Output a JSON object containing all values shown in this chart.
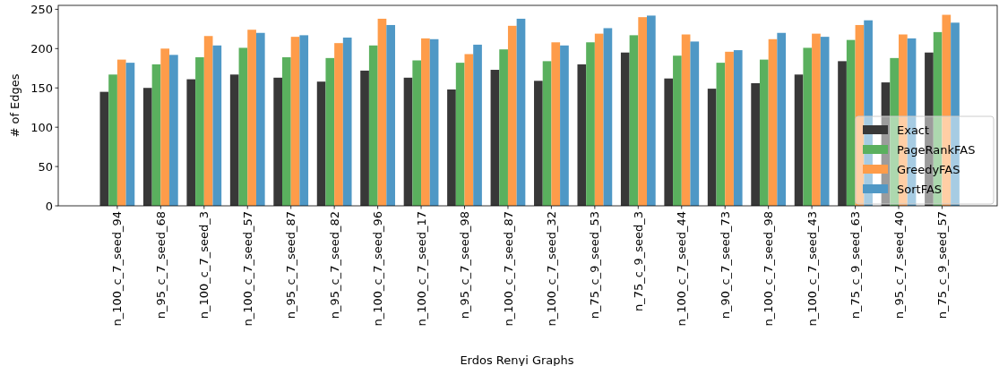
{
  "chart_data": {
    "type": "bar",
    "xlabel": "Erdos Renyi Graphs",
    "ylabel": "# of Edges",
    "categories": [
      "n_100_c_7_seed_94",
      "n_95_c_7_seed_68",
      "n_100_c_7_seed_3",
      "n_100_c_7_seed_57",
      "n_95_c_7_seed_87",
      "n_95_c_7_seed_82",
      "n_100_c_7_seed_96",
      "n_100_c_7_seed_17",
      "n_95_c_7_seed_98",
      "n_100_c_7_seed_87",
      "n_100_c_7_seed_32",
      "n_75_c_9_seed_53",
      "n_75_c_9_seed_3",
      "n_100_c_7_seed_44",
      "n_90_c_7_seed_73",
      "n_100_c_7_seed_98",
      "n_100_c_7_seed_43",
      "n_75_c_9_seed_63",
      "n_95_c_7_seed_40",
      "n_75_c_9_seed_57"
    ],
    "series": [
      {
        "name": "Exact",
        "color": "#383838",
        "values": [
          145,
          150,
          161,
          167,
          163,
          158,
          172,
          163,
          148,
          173,
          159,
          180,
          195,
          162,
          149,
          156,
          167,
          184,
          157,
          195
        ]
      },
      {
        "name": "PageRankFAS",
        "color": "#5ab05e",
        "values": [
          167,
          180,
          189,
          201,
          189,
          188,
          204,
          185,
          182,
          199,
          184,
          208,
          217,
          191,
          182,
          186,
          201,
          211,
          188,
          221
        ]
      },
      {
        "name": "GreedyFAS",
        "color": "#fe9c4a",
        "values": [
          186,
          200,
          216,
          224,
          215,
          207,
          238,
          213,
          193,
          229,
          208,
          219,
          240,
          218,
          196,
          212,
          219,
          230,
          218,
          243
        ]
      },
      {
        "name": "SortFAS",
        "color": "#4f98c6",
        "values": [
          182,
          192,
          204,
          220,
          217,
          214,
          230,
          212,
          205,
          238,
          204,
          226,
          242,
          209,
          198,
          220,
          215,
          236,
          213,
          233
        ]
      }
    ],
    "ylim": [
      0,
      255
    ],
    "yticks": [
      0,
      50,
      100,
      150,
      200,
      250
    ],
    "grid": false,
    "legend": "bottom right"
  }
}
